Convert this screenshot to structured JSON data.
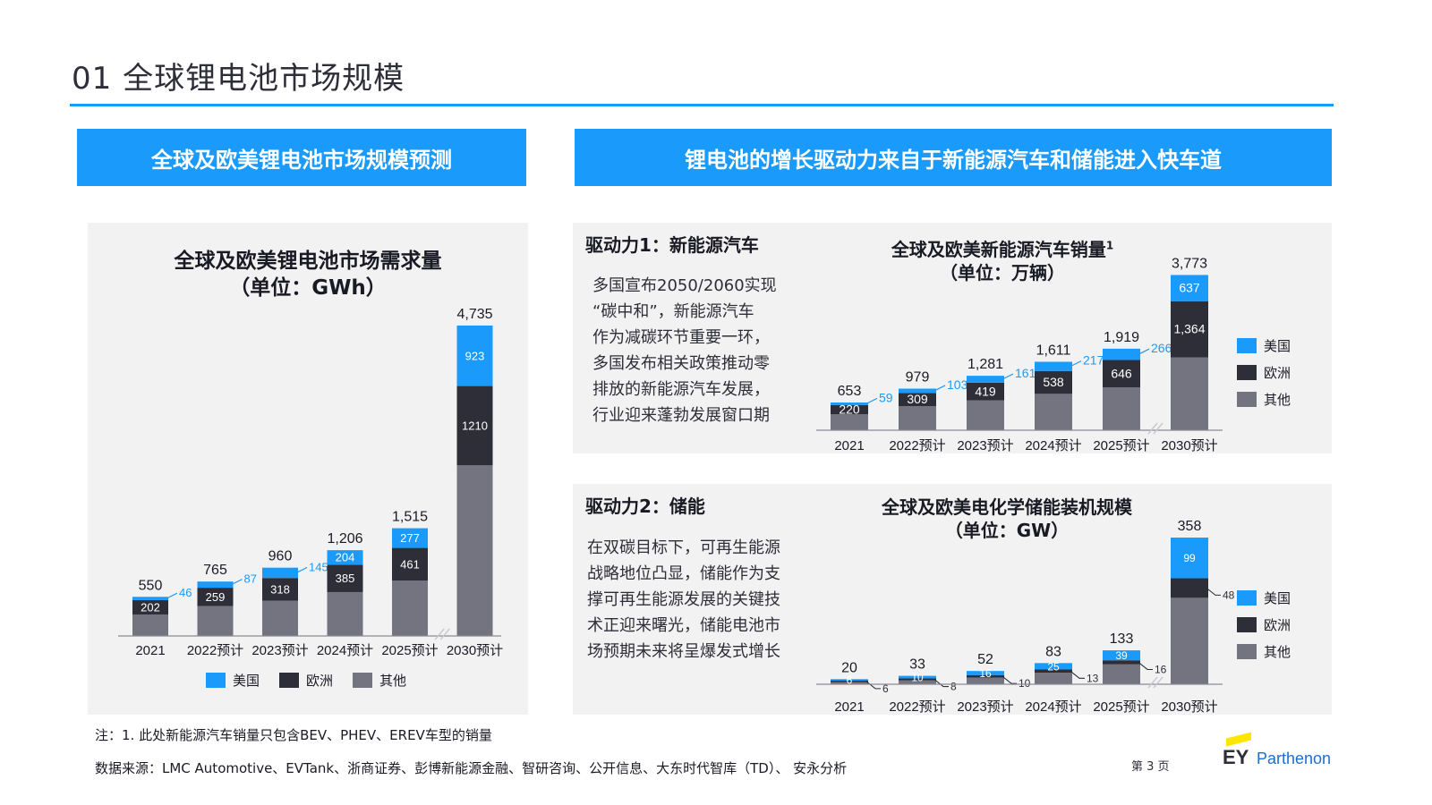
{
  "page": {
    "title": "01  全球锂电池市场规模",
    "banner_left": "全球及欧美锂电池市场规模预测",
    "banner_right": "锂电池的增长驱动力来自于新能源汽车和储能进入快车道",
    "page_number": "第 3 页",
    "logo": {
      "ey": "EY",
      "parthenon": "Parthenon"
    },
    "footnote": "注：1. 此处新能源汽车销量只包含BEV、PHEV、EREV车型的销量",
    "source": "数据来源：LMC Automotive、EVTank、浙商证券、彭博新能源金融、智研咨询、公开信息、大东时代智库（TD）、 安永分析",
    "colors": {
      "accent": "#1a9afa",
      "usa": "#1a9afa",
      "europe": "#2e2e38",
      "other": "#747480",
      "panel": "#f2f2f2"
    }
  },
  "driver_ev": {
    "heading": "驱动力1：新能源汽车",
    "lines": [
      "多国宣布2050/2060实现",
      "“碳中和”，新能源汽车",
      "作为减碳环节重要一环，",
      "多国发布相关政策推动零",
      "排放的新能源汽车发展，",
      "行业迎来蓬勃发展窗口期"
    ]
  },
  "driver_es": {
    "heading": "驱动力2：储能",
    "lines": [
      "在双碳目标下，可再生能源",
      "战略地位凸显，储能作为支",
      "撑可再生能源发展的关键技",
      "术正迎来曙光，储能电池市",
      "场预期未来将呈爆发式增长"
    ]
  },
  "legend": {
    "usa": "美国",
    "europe": "欧洲",
    "other": "其他"
  },
  "chart_data": [
    {
      "type": "bar",
      "stacked": true,
      "title": "全球及欧美锂电池市场需求量",
      "subtitle": "（单位：GWh）",
      "categories": [
        "2021",
        "2022预计",
        "2023预计",
        "2024预计",
        "2025预计",
        "2030预计"
      ],
      "totals": [
        550,
        765,
        960,
        1206,
        1515,
        4735
      ],
      "total_labels": [
        "550",
        "765",
        "960",
        "1,206",
        "1,515",
        "4,735"
      ],
      "series": [
        {
          "name": "美国",
          "values": [
            46,
            87,
            145,
            204,
            277,
            923
          ],
          "labels": [
            "46",
            "87",
            "145",
            "204",
            "277",
            "923"
          ]
        },
        {
          "name": "欧洲",
          "values": [
            202,
            259,
            318,
            385,
            461,
            1210
          ],
          "labels": [
            "202",
            "259",
            "318",
            "385",
            "461",
            "1210"
          ]
        },
        {
          "name": "其他",
          "values": [
            302,
            419,
            497,
            617,
            777,
            2602
          ]
        }
      ],
      "axis_break_before_last": true
    },
    {
      "type": "bar",
      "stacked": true,
      "title": "全球及欧美新能源汽车销量",
      "title_sup": "1",
      "subtitle": "（单位：万辆）",
      "categories": [
        "2021",
        "2022预计",
        "2023预计",
        "2024预计",
        "2025预计",
        "2030预计"
      ],
      "totals": [
        653,
        979,
        1281,
        1611,
        1919,
        3773
      ],
      "total_labels": [
        "653",
        "979",
        "1,281",
        "1,611",
        "1,919",
        "3,773"
      ],
      "series": [
        {
          "name": "美国",
          "values": [
            59,
            103,
            161,
            217,
            266,
            637
          ],
          "labels": [
            "59",
            "103",
            "161",
            "217",
            "266",
            "637"
          ]
        },
        {
          "name": "欧洲",
          "values": [
            220,
            309,
            419,
            538,
            646,
            1364
          ],
          "labels": [
            "220",
            "309",
            "419",
            "538",
            "646",
            "1,364"
          ]
        },
        {
          "name": "其他",
          "values": [
            374,
            567,
            701,
            856,
            1007,
            1772
          ]
        }
      ],
      "axis_break_before_last": true
    },
    {
      "type": "bar",
      "stacked": true,
      "title": "全球及欧美电化学储能装机规模",
      "subtitle": "（单位：GW）",
      "categories": [
        "2021",
        "2022预计",
        "2023预计",
        "2024预计",
        "2025预计",
        "2030预计"
      ],
      "totals": [
        20,
        33,
        52,
        83,
        133,
        358
      ],
      "total_labels": [
        "20",
        "33",
        "52",
        "83",
        "133",
        "358"
      ],
      "series": [
        {
          "name": "美国",
          "values": [
            6,
            10,
            16,
            25,
            39,
            99
          ],
          "labels": [
            "6",
            "10",
            "16",
            "25",
            "39",
            "99"
          ]
        },
        {
          "name": "欧洲",
          "values": [
            6,
            8,
            10,
            13,
            16,
            48
          ],
          "labels": [
            "6",
            "8",
            "10",
            "13",
            "16",
            "48"
          ]
        },
        {
          "name": "其他",
          "values": [
            8,
            15,
            26,
            45,
            78,
            211
          ]
        }
      ],
      "axis_break_before_last": true
    }
  ]
}
